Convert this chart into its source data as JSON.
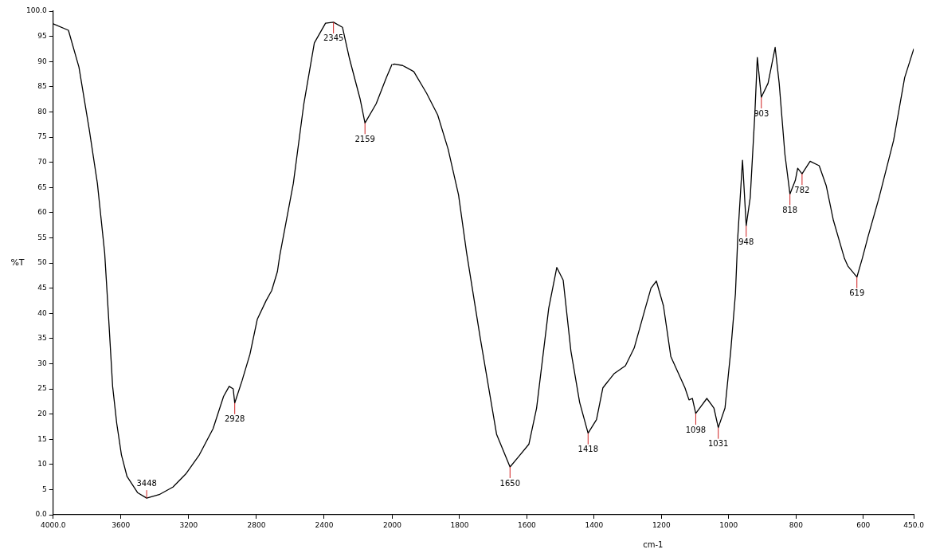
{
  "chart_data": [
    {
      "type": "line",
      "ylabel": "%T",
      "x": [
        4000,
        3910,
        3848,
        3787,
        3739,
        3696,
        3673,
        3649,
        3625,
        3597,
        3564,
        3502,
        3448,
        3374,
        3293,
        3217,
        3137,
        3056,
        2994,
        2961,
        2937,
        2928,
        2885,
        2838,
        2795,
        2743,
        2710,
        2676,
        2662,
        2582,
        2520,
        2458,
        2392,
        2345,
        2292,
        2250,
        2188,
        2159,
        2093,
        2033,
        2000
      ],
      "series": [
        {
          "color": "#000000",
          "values": [
            97.5,
            96.2,
            88.9,
            76.5,
            65.8,
            52,
            39.3,
            25.5,
            18.2,
            11.9,
            7.6,
            4.4,
            3.3,
            4.0,
            5.5,
            8.1,
            11.9,
            17.1,
            23.5,
            25.5,
            25.0,
            22.2,
            26.6,
            31.9,
            38.8,
            42.5,
            44.5,
            48.3,
            51.5,
            65.8,
            81.6,
            93.7,
            97.6,
            97.8,
            96.8,
            90.5,
            82.6,
            77.8,
            81.6,
            86.8,
            89.4
          ]
        }
      ],
      "xlim": [
        4000,
        2000
      ],
      "xticks": [
        {
          "value": 4000,
          "label": "4000.0"
        },
        3600,
        3200,
        2800,
        2400
      ],
      "ylim": [
        0,
        100
      ],
      "yticks": [
        {
          "value": 0,
          "label": "0.0"
        },
        5,
        10,
        15,
        20,
        25,
        30,
        35,
        40,
        45,
        50,
        55,
        60,
        65,
        70,
        75,
        80,
        85,
        90,
        95,
        {
          "value": 100,
          "label": "100.0"
        }
      ],
      "marker": "none",
      "line_style": "solid",
      "legend": false,
      "grid": false,
      "annotations": [
        {
          "text": "3448",
          "x": 3448,
          "y": 3.3
        },
        {
          "text": "2928",
          "x": 2928,
          "y": 22.2
        },
        {
          "text": "2345",
          "x": 2345,
          "y": 97.8
        },
        {
          "text": "2159",
          "x": 2159,
          "y": 77.8
        }
      ]
    },
    {
      "type": "line",
      "xlabel": "cm-1",
      "x": [
        2000,
        1993,
        1969,
        1936,
        1898,
        1865,
        1834,
        1803,
        1779,
        1739,
        1706,
        1690,
        1650,
        1625,
        1594,
        1571,
        1535,
        1511,
        1492,
        1469,
        1443,
        1418,
        1393,
        1374,
        1341,
        1307,
        1281,
        1248,
        1231,
        1215,
        1194,
        1172,
        1130,
        1118,
        1108,
        1098,
        1065,
        1044,
        1031,
        1011,
        994,
        980,
        973,
        959,
        948,
        936,
        922,
        915,
        903,
        883,
        862,
        850,
        833,
        818,
        802,
        795,
        782,
        758,
        731,
        710,
        689,
        656,
        646,
        619,
        603,
        586,
        553,
        510,
        477,
        450
      ],
      "series": [
        {
          "color": "#000000",
          "values": [
            89.4,
            89.5,
            89.2,
            88,
            83.7,
            79.4,
            72.6,
            63.5,
            52,
            35.3,
            22.3,
            16,
            9.5,
            11.5,
            14,
            21.2,
            41,
            49.1,
            46.6,
            32.5,
            22.3,
            16.2,
            18.9,
            25.2,
            28,
            29.6,
            33.1,
            41,
            45,
            46.4,
            41.5,
            31.4,
            25.2,
            22.8,
            23.1,
            20.1,
            23.1,
            21.2,
            17.3,
            21.2,
            32.5,
            43.9,
            55.2,
            70.4,
            57.4,
            63,
            80,
            90.8,
            82.9,
            85.7,
            92.8,
            85.7,
            71.6,
            63.7,
            66.4,
            68.8,
            67.7,
            70.2,
            69.3,
            65.3,
            58.5,
            50.9,
            49.4,
            47.2,
            50.9,
            55.2,
            63,
            74.3,
            86.8,
            92.5
          ]
        }
      ],
      "xlim": [
        2000,
        450
      ],
      "xticks": [
        2000,
        1800,
        1600,
        1400,
        1200,
        1000,
        800,
        600,
        {
          "value": 450,
          "label": "450.0"
        }
      ],
      "ylim": [
        0,
        100
      ],
      "tick_labels": "x",
      "marker": "none",
      "line_style": "solid",
      "legend": false,
      "grid": false,
      "annotations": [
        {
          "text": "1650",
          "x": 1650,
          "y": 9.5
        },
        {
          "text": "1418",
          "x": 1418,
          "y": 16.2
        },
        {
          "text": "1098",
          "x": 1098,
          "y": 20.1
        },
        {
          "text": "1031",
          "x": 1031,
          "y": 17.3
        },
        {
          "text": "948",
          "x": 948,
          "y": 57.4
        },
        {
          "text": "903",
          "x": 903,
          "y": 82.9
        },
        {
          "text": "818",
          "x": 818,
          "y": 63.7
        },
        {
          "text": "782",
          "x": 782,
          "y": 67.7
        },
        {
          "text": "619",
          "x": 619,
          "y": 47.2
        }
      ]
    }
  ]
}
